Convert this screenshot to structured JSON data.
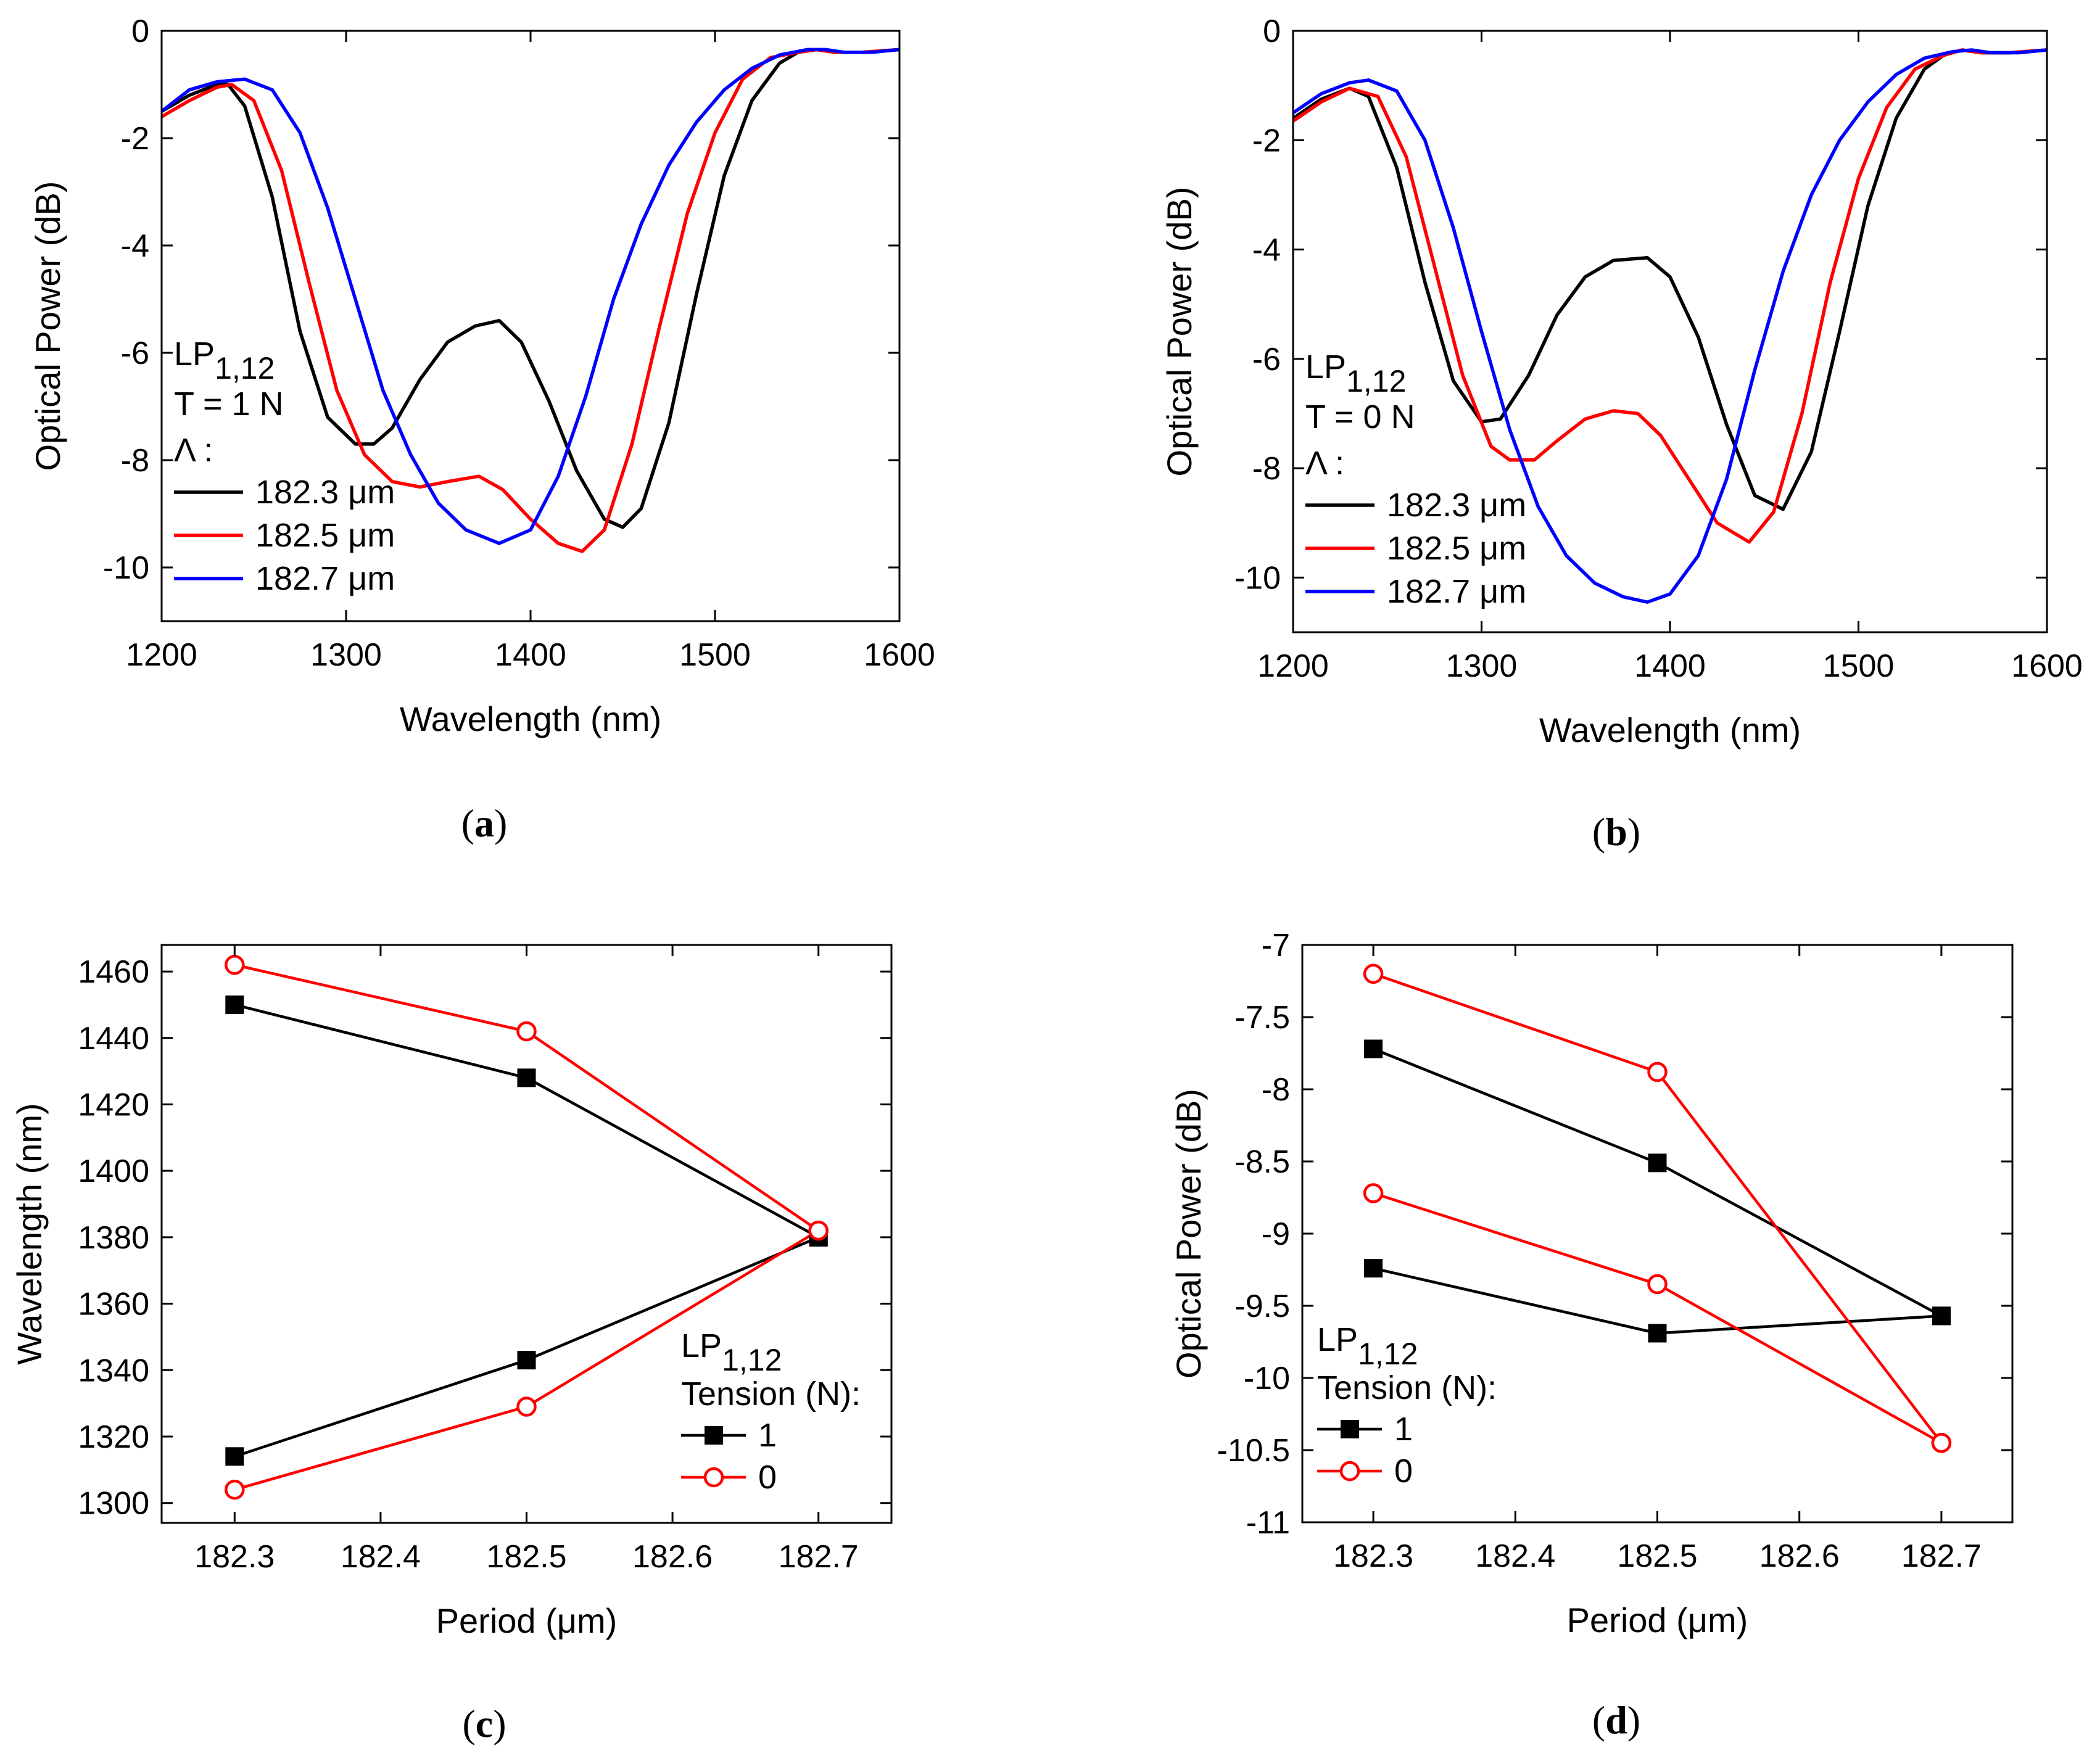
{
  "chart_data": [
    {
      "id": "a",
      "panel_label": "a",
      "type": "line",
      "xlabel": "Wavelength (nm)",
      "ylabel": "Optical Power (dB)",
      "xlim": [
        1200,
        1600
      ],
      "ylim": [
        -11,
        0
      ],
      "xticks": [
        1200,
        1300,
        1400,
        1500,
        1600
      ],
      "yticks": [
        0,
        -2,
        -4,
        -6,
        -8,
        -10
      ],
      "legend": {
        "mode": "LP",
        "mode_subscript": "1,12",
        "condition": "T = 1 N",
        "param": "Λ :",
        "position": "lower-left"
      },
      "series": [
        {
          "name": "182.3 μm",
          "color": "#000000",
          "x": [
            1200,
            1215,
            1230,
            1236,
            1245,
            1260,
            1275,
            1290,
            1305,
            1315,
            1325,
            1340,
            1355,
            1370,
            1383,
            1395,
            1410,
            1425,
            1440,
            1450,
            1460,
            1475,
            1490,
            1505,
            1520,
            1535,
            1545,
            1555,
            1565,
            1580,
            1600
          ],
          "y": [
            -1.5,
            -1.2,
            -1.0,
            -1.0,
            -1.4,
            -3.1,
            -5.6,
            -7.2,
            -7.7,
            -7.7,
            -7.4,
            -6.5,
            -5.8,
            -5.5,
            -5.4,
            -5.8,
            -6.9,
            -8.2,
            -9.1,
            -9.25,
            -8.9,
            -7.3,
            -4.9,
            -2.7,
            -1.3,
            -0.6,
            -0.4,
            -0.35,
            -0.4,
            -0.4,
            -0.35
          ]
        },
        {
          "name": "182.5 μm",
          "color": "#ff0000",
          "x": [
            1200,
            1215,
            1230,
            1238,
            1250,
            1265,
            1280,
            1295,
            1310,
            1325,
            1340,
            1355,
            1372,
            1385,
            1400,
            1415,
            1428,
            1440,
            1455,
            1470,
            1485,
            1500,
            1515,
            1530,
            1545,
            1555,
            1565,
            1580,
            1600
          ],
          "y": [
            -1.6,
            -1.3,
            -1.05,
            -1.0,
            -1.3,
            -2.6,
            -4.7,
            -6.7,
            -7.9,
            -8.4,
            -8.5,
            -8.4,
            -8.3,
            -8.55,
            -9.1,
            -9.55,
            -9.7,
            -9.3,
            -7.7,
            -5.5,
            -3.4,
            -1.9,
            -0.9,
            -0.5,
            -0.4,
            -0.35,
            -0.4,
            -0.4,
            -0.35
          ]
        },
        {
          "name": "182.7 μm",
          "color": "#0000ff",
          "x": [
            1200,
            1215,
            1230,
            1245,
            1260,
            1275,
            1290,
            1305,
            1320,
            1335,
            1350,
            1365,
            1383,
            1400,
            1415,
            1430,
            1445,
            1460,
            1475,
            1490,
            1505,
            1520,
            1535,
            1550,
            1560,
            1570,
            1585,
            1600
          ],
          "y": [
            -1.5,
            -1.1,
            -0.95,
            -0.9,
            -1.1,
            -1.9,
            -3.3,
            -5.0,
            -6.7,
            -7.9,
            -8.8,
            -9.3,
            -9.55,
            -9.3,
            -8.3,
            -6.8,
            -5.0,
            -3.6,
            -2.5,
            -1.7,
            -1.1,
            -0.7,
            -0.45,
            -0.35,
            -0.35,
            -0.4,
            -0.4,
            -0.35
          ]
        }
      ]
    },
    {
      "id": "b",
      "panel_label": "b",
      "type": "line",
      "xlabel": "Wavelength (nm)",
      "ylabel": "Optical Power (dB)",
      "xlim": [
        1200,
        1600
      ],
      "ylim": [
        -11,
        0
      ],
      "xticks": [
        1200,
        1300,
        1400,
        1500,
        1600
      ],
      "yticks": [
        0,
        -2,
        -4,
        -6,
        -8,
        -10
      ],
      "legend": {
        "mode": "LP",
        "mode_subscript": "1,12",
        "condition": "T = 0 N",
        "param": "Λ :",
        "position": "lower-left"
      },
      "series": [
        {
          "name": "182.3 μm",
          "color": "#000000",
          "x": [
            1200,
            1215,
            1230,
            1240,
            1255,
            1270,
            1285,
            1300,
            1310,
            1325,
            1340,
            1355,
            1370,
            1388,
            1400,
            1415,
            1430,
            1445,
            1460,
            1475,
            1490,
            1505,
            1520,
            1535,
            1545,
            1555,
            1565,
            1580,
            1600
          ],
          "y": [
            -1.6,
            -1.25,
            -1.05,
            -1.2,
            -2.5,
            -4.6,
            -6.4,
            -7.15,
            -7.1,
            -6.3,
            -5.2,
            -4.5,
            -4.2,
            -4.15,
            -4.5,
            -5.6,
            -7.2,
            -8.5,
            -8.75,
            -7.7,
            -5.5,
            -3.2,
            -1.6,
            -0.7,
            -0.45,
            -0.35,
            -0.4,
            -0.4,
            -0.35
          ]
        },
        {
          "name": "182.5 μm",
          "color": "#ff0000",
          "x": [
            1200,
            1215,
            1230,
            1245,
            1260,
            1275,
            1290,
            1305,
            1315,
            1328,
            1340,
            1355,
            1370,
            1383,
            1395,
            1410,
            1425,
            1442,
            1455,
            1470,
            1485,
            1500,
            1515,
            1530,
            1545,
            1555,
            1565,
            1580,
            1600
          ],
          "y": [
            -1.65,
            -1.3,
            -1.05,
            -1.2,
            -2.3,
            -4.3,
            -6.3,
            -7.6,
            -7.85,
            -7.85,
            -7.5,
            -7.1,
            -6.95,
            -7.0,
            -7.4,
            -8.2,
            -9.0,
            -9.35,
            -8.8,
            -7.0,
            -4.6,
            -2.7,
            -1.4,
            -0.7,
            -0.45,
            -0.35,
            -0.4,
            -0.4,
            -0.35
          ]
        },
        {
          "name": "182.7 μm",
          "color": "#0000ff",
          "x": [
            1200,
            1215,
            1230,
            1240,
            1255,
            1270,
            1285,
            1300,
            1315,
            1330,
            1345,
            1360,
            1375,
            1388,
            1400,
            1415,
            1430,
            1445,
            1460,
            1475,
            1490,
            1505,
            1520,
            1535,
            1550,
            1560,
            1570,
            1585,
            1600
          ],
          "y": [
            -1.5,
            -1.15,
            -0.95,
            -0.9,
            -1.1,
            -2.0,
            -3.6,
            -5.5,
            -7.3,
            -8.7,
            -9.6,
            -10.1,
            -10.35,
            -10.45,
            -10.3,
            -9.6,
            -8.2,
            -6.2,
            -4.4,
            -3.0,
            -2.0,
            -1.3,
            -0.8,
            -0.5,
            -0.38,
            -0.35,
            -0.4,
            -0.4,
            -0.35
          ]
        }
      ]
    },
    {
      "id": "c",
      "panel_label": "c",
      "type": "line",
      "markers": true,
      "xlabel": "Period (μm)",
      "ylabel": "Wavelength (nm)",
      "xlim": [
        182.25,
        182.75
      ],
      "ylim": [
        1294,
        1468
      ],
      "xticks": [
        182.3,
        182.4,
        182.5,
        182.6,
        182.7
      ],
      "yticks": [
        1300,
        1320,
        1340,
        1360,
        1380,
        1400,
        1420,
        1440,
        1460
      ],
      "legend": {
        "mode": "LP",
        "mode_subscript": "1,12",
        "title": "Tension (N):",
        "entries": [
          "1",
          "0"
        ],
        "position": "lower-right"
      },
      "series": [
        {
          "name": "1",
          "color": "#000000",
          "marker": "square",
          "x": [
            182.3,
            182.5,
            182.7
          ],
          "y": [
            1450,
            1428,
            1380
          ]
        },
        {
          "name": "1",
          "color": "#000000",
          "marker": "square",
          "x": [
            182.3,
            182.5,
            182.7
          ],
          "y": [
            1314,
            1343,
            1380
          ]
        },
        {
          "name": "0",
          "color": "#ff0000",
          "marker": "open-circle",
          "x": [
            182.3,
            182.5,
            182.7
          ],
          "y": [
            1462,
            1442,
            1382
          ]
        },
        {
          "name": "0",
          "color": "#ff0000",
          "marker": "open-circle",
          "x": [
            182.3,
            182.5,
            182.7
          ],
          "y": [
            1304,
            1329,
            1382
          ]
        }
      ]
    },
    {
      "id": "d",
      "panel_label": "d",
      "type": "line",
      "markers": true,
      "xlabel": "Period (μm)",
      "ylabel": "Optical Power (dB)",
      "xlim": [
        182.25,
        182.75
      ],
      "ylim": [
        -11.0,
        -7.0
      ],
      "xticks": [
        182.3,
        182.4,
        182.5,
        182.6,
        182.7
      ],
      "yticks": [
        -7.0,
        -7.5,
        -8.0,
        -8.5,
        -9.0,
        -9.5,
        -10.0,
        -10.5,
        -11.0
      ],
      "ytick_labels": [
        "-7.0",
        "-7.5",
        "-8.0",
        "-8.5",
        "-9.0",
        "-9.5",
        "-10.0",
        "-10.5",
        "-11.0"
      ],
      "legend": {
        "mode": "LP",
        "mode_subscript": "1,12",
        "title": "Tension (N):",
        "entries": [
          "1",
          "0"
        ],
        "position": "lower-left"
      },
      "series": [
        {
          "name": "1",
          "color": "#000000",
          "marker": "square",
          "x": [
            182.3,
            182.5,
            182.7
          ],
          "y": [
            -7.72,
            -8.51,
            -9.57
          ]
        },
        {
          "name": "1",
          "color": "#000000",
          "marker": "square",
          "x": [
            182.3,
            182.5,
            182.7
          ],
          "y": [
            -9.24,
            -9.69,
            -9.57
          ]
        },
        {
          "name": "0",
          "color": "#ff0000",
          "marker": "open-circle",
          "x": [
            182.3,
            182.5,
            182.7
          ],
          "y": [
            -7.2,
            -7.88,
            -10.45
          ]
        },
        {
          "name": "0",
          "color": "#ff0000",
          "marker": "open-circle",
          "x": [
            182.3,
            182.5,
            182.7
          ],
          "y": [
            -8.72,
            -9.35,
            -10.45
          ]
        }
      ]
    }
  ]
}
